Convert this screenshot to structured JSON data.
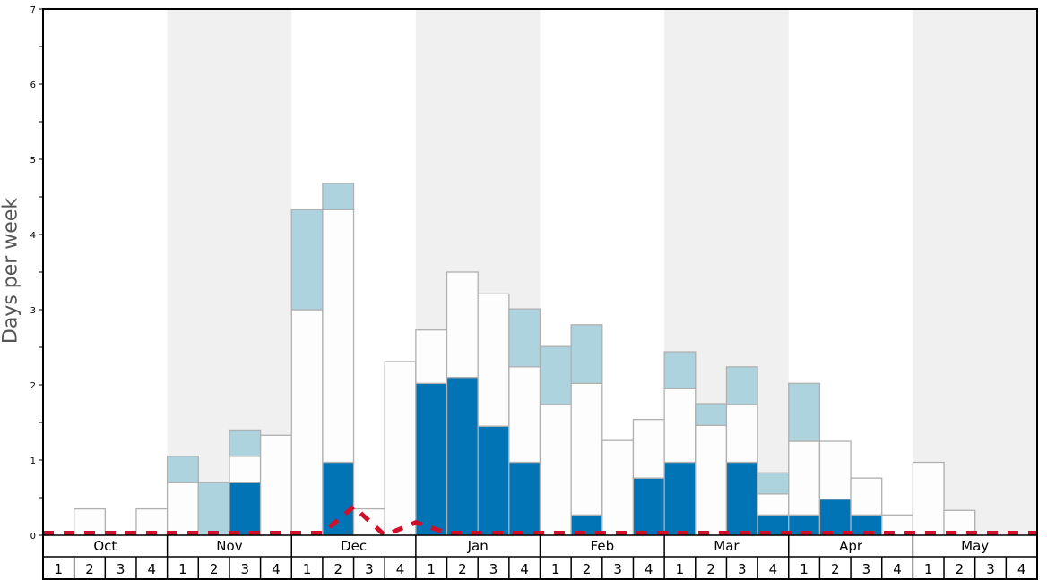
{
  "chart_data": {
    "type": "bar",
    "stacked": true,
    "title": "",
    "xlabel": "",
    "ylabel": "Days per week",
    "ylim": [
      0,
      7
    ],
    "yticks": [
      0,
      1,
      2,
      3,
      4,
      5,
      6,
      7
    ],
    "months": [
      "Oct",
      "Nov",
      "Dec",
      "Jan",
      "Feb",
      "Mar",
      "Apr",
      "May"
    ],
    "shaded_months": [
      "Nov",
      "Jan",
      "Mar",
      "May"
    ],
    "weeks_per_month": [
      "1",
      "2",
      "3",
      "4"
    ],
    "categories": [
      "Oct 1",
      "Oct 2",
      "Oct 3",
      "Oct 4",
      "Nov 1",
      "Nov 2",
      "Nov 3",
      "Nov 4",
      "Dec 1",
      "Dec 2",
      "Dec 3",
      "Dec 4",
      "Jan 1",
      "Jan 2",
      "Jan 3",
      "Jan 4",
      "Feb 1",
      "Feb 2",
      "Feb 3",
      "Feb 4",
      "Mar 1",
      "Mar 2",
      "Mar 3",
      "Mar 4",
      "Apr 1",
      "Apr 2",
      "Apr 3",
      "Apr 4",
      "May 1",
      "May 2",
      "May 3",
      "May 4"
    ],
    "series": [
      {
        "name": "dark blue segment",
        "color": "#0074b4",
        "values": [
          0,
          0,
          0,
          0,
          0,
          0,
          0.7,
          0,
          0,
          0.97,
          0,
          0,
          2.02,
          2.1,
          1.45,
          0.97,
          0,
          0.27,
          0,
          0.76,
          0.97,
          0,
          0.97,
          0.27,
          0.27,
          0.48,
          0.27,
          0,
          0,
          0,
          0,
          0
        ]
      },
      {
        "name": "white segment",
        "color": "#fdfdfd",
        "values": [
          0,
          0.35,
          0,
          0.35,
          0.7,
          0,
          0.35,
          1.33,
          3.0,
          3.36,
          0.35,
          2.31,
          0.71,
          1.4,
          1.76,
          1.27,
          1.74,
          1.75,
          1.26,
          0.78,
          0.98,
          1.46,
          0.77,
          0.28,
          0.98,
          0.77,
          0.49,
          0.27,
          0.97,
          0.33,
          0,
          0
        ]
      },
      {
        "name": "light blue segment",
        "color": "#add3df",
        "values": [
          0,
          0,
          0,
          0,
          0.35,
          0.7,
          0.35,
          0,
          1.33,
          0.35,
          0,
          0,
          0,
          0,
          0,
          0.77,
          0.77,
          0.78,
          0,
          0,
          0.49,
          0.29,
          0.5,
          0.28,
          0.77,
          0,
          0,
          0,
          0,
          0,
          0,
          0
        ]
      }
    ],
    "line_series": {
      "name": "red dashed line",
      "color": "#d0102a",
      "style": "dashed",
      "points": [
        {
          "x": 0,
          "y": 0.03
        },
        {
          "x": 9,
          "y": 0.03
        },
        {
          "x": 10,
          "y": 0.38
        },
        {
          "x": 11,
          "y": 0.0
        },
        {
          "x": 12,
          "y": 0.17
        },
        {
          "x": 13,
          "y": 0.03
        },
        {
          "x": 32,
          "y": 0.03
        }
      ]
    },
    "colors": {
      "shade": "#f0f0f0",
      "bar_outline": "#b0b0b0",
      "axis": "#000000"
    },
    "grid": false,
    "legend": "none"
  }
}
